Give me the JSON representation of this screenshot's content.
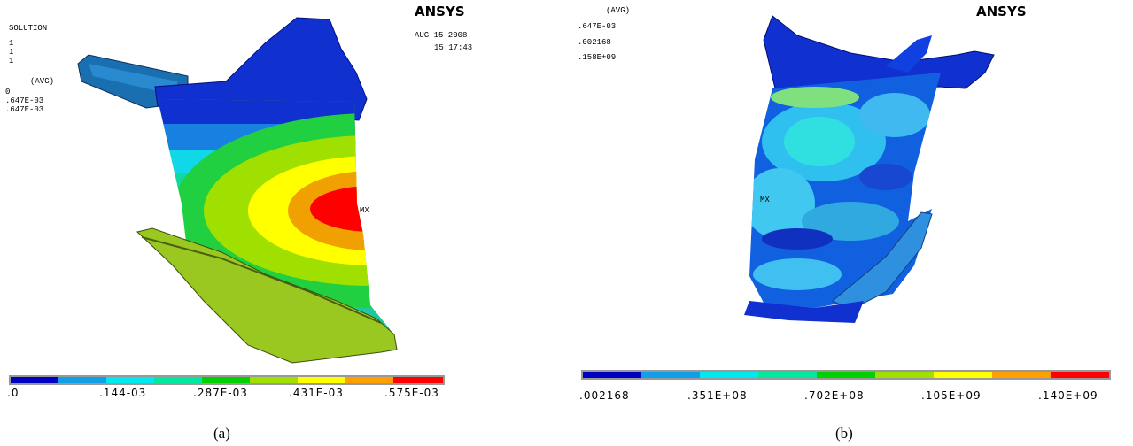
{
  "panel_a": {
    "legend_text": [
      "SOLUTION",
      "1",
      "1",
      "1",
      "(AVG)",
      "0",
      ".647E-03",
      ".647E-03"
    ],
    "logo": "ANSYS",
    "date": "AUG 15 2008",
    "time": "15:17:43",
    "max_marker": "MX",
    "colorbar_labels": [
      ".0",
      ".144-03",
      ".287E-03",
      ".431E-03",
      ".575E-03"
    ],
    "caption": "(a)"
  },
  "panel_b": {
    "legend_text": [
      "(AVG)",
      ".647E-03",
      ".002168",
      ".158E+09"
    ],
    "logo": "ANSYS",
    "max_marker": "MX",
    "colorbar_labels": [
      ".002168",
      ".351E+08",
      ".702E+08",
      ".105E+09",
      ".140E+09"
    ],
    "caption": "(b)"
  }
}
